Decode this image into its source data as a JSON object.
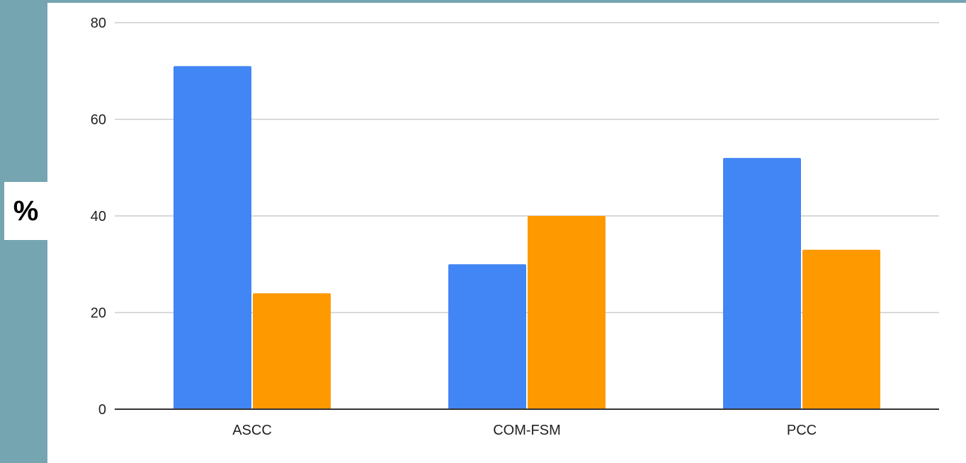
{
  "unit_label": "%",
  "colors": {
    "background": "#76a5b2",
    "panel": "#ffffff",
    "gridline": "#cccccc",
    "axis": "#333333",
    "series_blue": "#4285f4",
    "series_orange": "#ff9900"
  },
  "chart_data": {
    "type": "bar",
    "categories": [
      "ASCC",
      "COM-FSM",
      "PCC"
    ],
    "series": [
      {
        "color": "#4285f4",
        "values": [
          71,
          30,
          52
        ]
      },
      {
        "color": "#ff9900",
        "values": [
          24,
          40,
          33
        ]
      }
    ],
    "ylim": [
      0,
      80
    ],
    "yticks": [
      0,
      20,
      40,
      60,
      80
    ],
    "grid": true,
    "legend": "none"
  }
}
